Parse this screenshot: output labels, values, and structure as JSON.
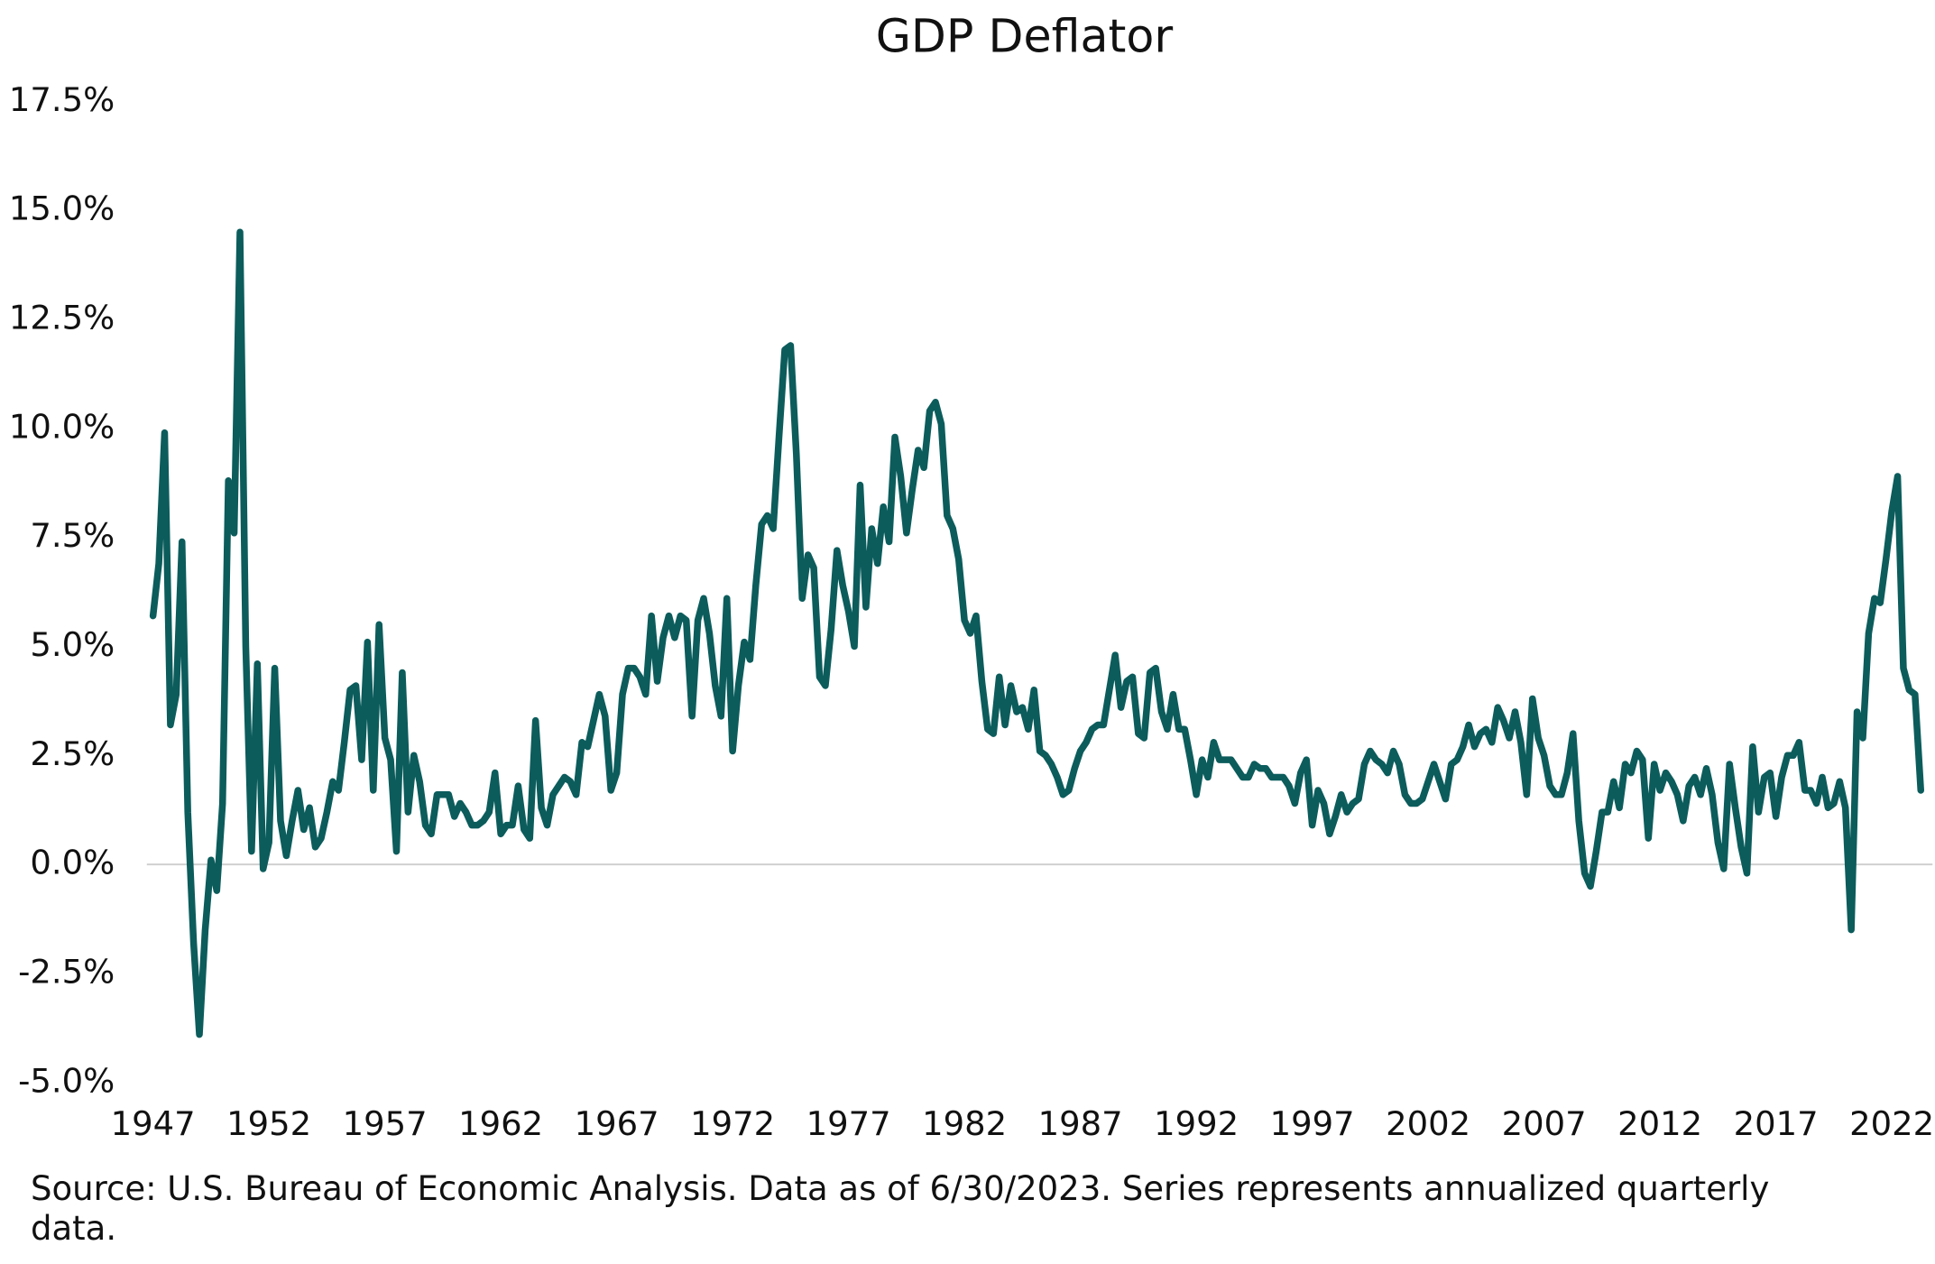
{
  "chart_data": {
    "type": "line",
    "title": "GDP Deflator",
    "source": "Source:  U.S. Bureau of Economic Analysis. Data as of  6/30/2023. Series represents annualized quarterly data.",
    "categories": [
      "1947",
      null,
      null,
      null,
      null,
      null,
      null,
      null,
      null,
      null,
      null,
      null,
      null,
      null,
      null,
      null,
      null,
      null,
      null,
      null,
      "1952",
      null,
      null,
      null,
      null,
      null,
      null,
      null,
      null,
      null,
      null,
      null,
      null,
      null,
      null,
      null,
      null,
      null,
      null,
      null,
      "1957",
      null,
      null,
      null,
      null,
      null,
      null,
      null,
      null,
      null,
      null,
      null,
      null,
      null,
      null,
      null,
      null,
      null,
      null,
      null,
      "1962",
      null,
      null,
      null,
      null,
      null,
      null,
      null,
      null,
      null,
      null,
      null,
      null,
      null,
      null,
      null,
      null,
      null,
      null,
      null,
      "1967",
      null,
      null,
      null,
      null,
      null,
      null,
      null,
      null,
      null,
      null,
      null,
      null,
      null,
      null,
      null,
      null,
      null,
      null,
      null,
      "1972",
      null,
      null,
      null,
      null,
      null,
      null,
      null,
      null,
      null,
      null,
      null,
      null,
      null,
      null,
      null,
      null,
      null,
      null,
      null,
      "1977",
      null,
      null,
      null,
      null,
      null,
      null,
      null,
      null,
      null,
      null,
      null,
      null,
      null,
      null,
      null,
      null,
      null,
      null,
      null,
      "1982",
      null,
      null,
      null,
      null,
      null,
      null,
      null,
      null,
      null,
      null,
      null,
      null,
      null,
      null,
      null,
      null,
      null,
      null,
      null,
      "1987",
      null,
      null,
      null,
      null,
      null,
      null,
      null,
      null,
      null,
      null,
      null,
      null,
      null,
      null,
      null,
      null,
      null,
      null,
      null,
      "1992",
      null,
      null,
      null,
      null,
      null,
      null,
      null,
      null,
      null,
      null,
      null,
      null,
      null,
      null,
      null,
      null,
      null,
      null,
      null,
      "1997",
      null,
      null,
      null,
      null,
      null,
      null,
      null,
      null,
      null,
      null,
      null,
      null,
      null,
      null,
      null,
      null,
      null,
      null,
      null,
      "2002",
      null,
      null,
      null,
      null,
      null,
      null,
      null,
      null,
      null,
      null,
      null,
      null,
      null,
      null,
      null,
      null,
      null,
      null,
      null,
      "2007",
      null,
      null,
      null,
      null,
      null,
      null,
      null,
      null,
      null,
      null,
      null,
      null,
      null,
      null,
      null,
      null,
      null,
      null,
      null,
      "2012",
      null,
      null,
      null,
      null,
      null,
      null,
      null,
      null,
      null,
      null,
      null,
      null,
      null,
      null,
      null,
      null,
      null,
      null,
      null,
      "2017",
      null,
      null,
      null,
      null,
      null,
      null,
      null,
      null,
      null,
      null,
      null,
      null,
      null,
      null,
      null,
      null,
      null,
      null,
      null,
      "2022",
      null,
      null,
      null,
      null,
      null
    ],
    "series": [
      {
        "name": "GDP Deflator",
        "color": "#0c5c5c",
        "values": [
          5.7,
          6.9,
          9.9,
          3.2,
          3.9,
          7.4,
          1.2,
          -1.8,
          -3.9,
          -1.5,
          0.1,
          -0.6,
          1.4,
          8.8,
          7.6,
          14.5,
          5.0,
          0.3,
          4.6,
          -0.1,
          0.5,
          4.5,
          1.0,
          0.2,
          1.0,
          1.7,
          0.8,
          1.3,
          0.4,
          0.6,
          1.2,
          1.9,
          1.7,
          2.8,
          4.0,
          4.1,
          2.4,
          5.1,
          1.7,
          5.5,
          2.9,
          2.4,
          0.3,
          4.4,
          1.2,
          2.5,
          1.9,
          0.9,
          0.7,
          1.6,
          1.6,
          1.6,
          1.1,
          1.4,
          1.2,
          0.9,
          0.9,
          1.0,
          1.2,
          2.1,
          0.7,
          0.9,
          0.9,
          1.8,
          0.8,
          0.6,
          3.3,
          1.3,
          0.9,
          1.6,
          1.8,
          2.0,
          1.9,
          1.6,
          2.8,
          2.7,
          3.3,
          3.9,
          3.4,
          1.7,
          2.1,
          3.9,
          4.5,
          4.5,
          4.3,
          3.9,
          5.7,
          4.2,
          5.2,
          5.7,
          5.2,
          5.7,
          5.6,
          3.4,
          5.6,
          6.1,
          5.3,
          4.1,
          3.4,
          6.1,
          2.6,
          4.1,
          5.1,
          4.7,
          6.4,
          7.8,
          8.0,
          7.7,
          9.8,
          11.8,
          11.9,
          9.4,
          6.1,
          7.1,
          6.8,
          4.3,
          4.1,
          5.4,
          7.2,
          6.4,
          5.8,
          5.0,
          8.7,
          5.9,
          7.7,
          6.9,
          8.2,
          7.4,
          9.8,
          8.9,
          7.6,
          8.6,
          9.5,
          9.1,
          10.4,
          10.6,
          10.1,
          8.0,
          7.7,
          7.0,
          5.6,
          5.3,
          5.7,
          4.2,
          3.1,
          3.0,
          4.3,
          3.2,
          4.1,
          3.5,
          3.6,
          3.1,
          4.0,
          2.6,
          2.5,
          2.3,
          2.0,
          1.6,
          1.7,
          2.2,
          2.6,
          2.8,
          3.1,
          3.2,
          3.2,
          4.0,
          4.8,
          3.6,
          4.2,
          4.3,
          3.0,
          2.9,
          4.4,
          4.5,
          3.5,
          3.1,
          3.9,
          3.1,
          3.1,
          2.4,
          1.6,
          2.4,
          2.0,
          2.8,
          2.4,
          2.4,
          2.4,
          2.2,
          2.0,
          2.0,
          2.3,
          2.2,
          2.2,
          2.0,
          2.0,
          2.0,
          1.8,
          1.4,
          2.1,
          2.4,
          0.9,
          1.7,
          1.4,
          0.7,
          1.1,
          1.6,
          1.2,
          1.4,
          1.5,
          2.3,
          2.6,
          2.4,
          2.3,
          2.1,
          2.6,
          2.3,
          1.6,
          1.4,
          1.4,
          1.5,
          1.9,
          2.3,
          1.9,
          1.5,
          2.3,
          2.4,
          2.7,
          3.2,
          2.7,
          3.0,
          3.1,
          2.8,
          3.6,
          3.3,
          2.9,
          3.5,
          2.8,
          1.6,
          3.8,
          2.9,
          2.5,
          1.8,
          1.6,
          1.6,
          2.1,
          3.0,
          1.0,
          -0.2,
          -0.5,
          0.3,
          1.2,
          1.2,
          1.9,
          1.3,
          2.3,
          2.1,
          2.6,
          2.4,
          0.6,
          2.3,
          1.7,
          2.1,
          1.9,
          1.6,
          1.0,
          1.8,
          2.0,
          1.6,
          2.2,
          1.6,
          0.5,
          -0.1,
          2.3,
          1.3,
          0.4,
          -0.2,
          2.7,
          1.2,
          2.0,
          2.1,
          1.1,
          2.0,
          2.5,
          2.5,
          2.8,
          1.7,
          1.7,
          1.4,
          2.0,
          1.3,
          1.4,
          1.9,
          1.3,
          -1.5,
          3.5,
          2.9,
          5.3,
          6.1,
          6.0,
          7.0,
          8.1,
          8.9,
          4.5,
          4.0,
          3.9,
          1.7
        ]
      }
    ],
    "ylim": [
      -5,
      17.5
    ],
    "yticks": [
      {
        "value": -5,
        "label": "-5.0%"
      },
      {
        "value": -2.5,
        "label": "-2.5%"
      },
      {
        "value": 0,
        "label": "0.0%"
      },
      {
        "value": 2.5,
        "label": "2.5%"
      },
      {
        "value": 5,
        "label": "5.0%"
      },
      {
        "value": 7.5,
        "label": "7.5%"
      },
      {
        "value": 10,
        "label": "10.0%"
      },
      {
        "value": 12.5,
        "label": "12.5%"
      },
      {
        "value": 15,
        "label": "15.0%"
      },
      {
        "value": 17.5,
        "label": "17.5%"
      }
    ],
    "zero_line": true,
    "grid": false
  }
}
